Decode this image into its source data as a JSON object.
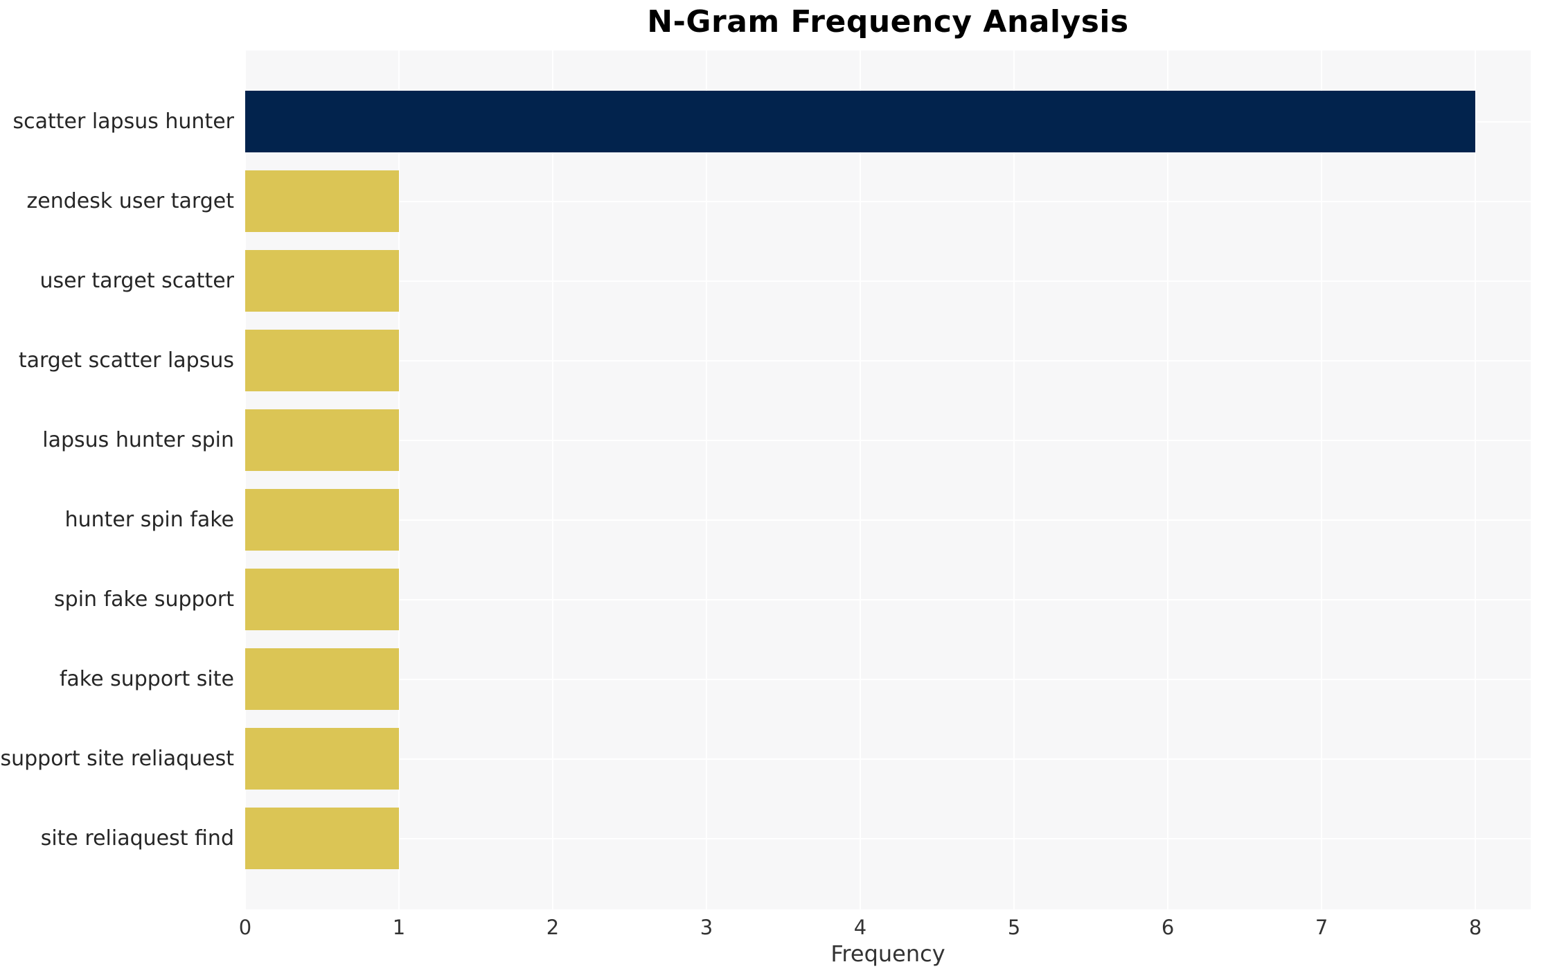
{
  "chart_data": {
    "type": "bar",
    "orientation": "horizontal",
    "title": "N-Gram Frequency Analysis",
    "xlabel": "Frequency",
    "ylabel": "",
    "categories": [
      "scatter lapsus hunter",
      "zendesk user target",
      "user target scatter",
      "target scatter lapsus",
      "lapsus hunter spin",
      "hunter spin fake",
      "spin fake support",
      "fake support site",
      "support site reliaquest",
      "site reliaquest find"
    ],
    "values": [
      8,
      1,
      1,
      1,
      1,
      1,
      1,
      1,
      1,
      1
    ],
    "colors": [
      "#02234d",
      "#dbc555",
      "#dbc555",
      "#dbc555",
      "#dbc555",
      "#dbc555",
      "#dbc555",
      "#dbc555",
      "#dbc555",
      "#dbc555"
    ],
    "xticks": [
      0,
      1,
      2,
      3,
      4,
      5,
      6,
      7,
      8
    ],
    "xlim": [
      0,
      8.36
    ],
    "grid": true,
    "legend": false,
    "plot_background": "#f7f7f8",
    "grid_color": "#ffffff",
    "highlight_color": "#02234d",
    "base_color": "#dbc555",
    "title_color": "#000000",
    "label_color": "#262626",
    "tick_color": "#333333"
  }
}
